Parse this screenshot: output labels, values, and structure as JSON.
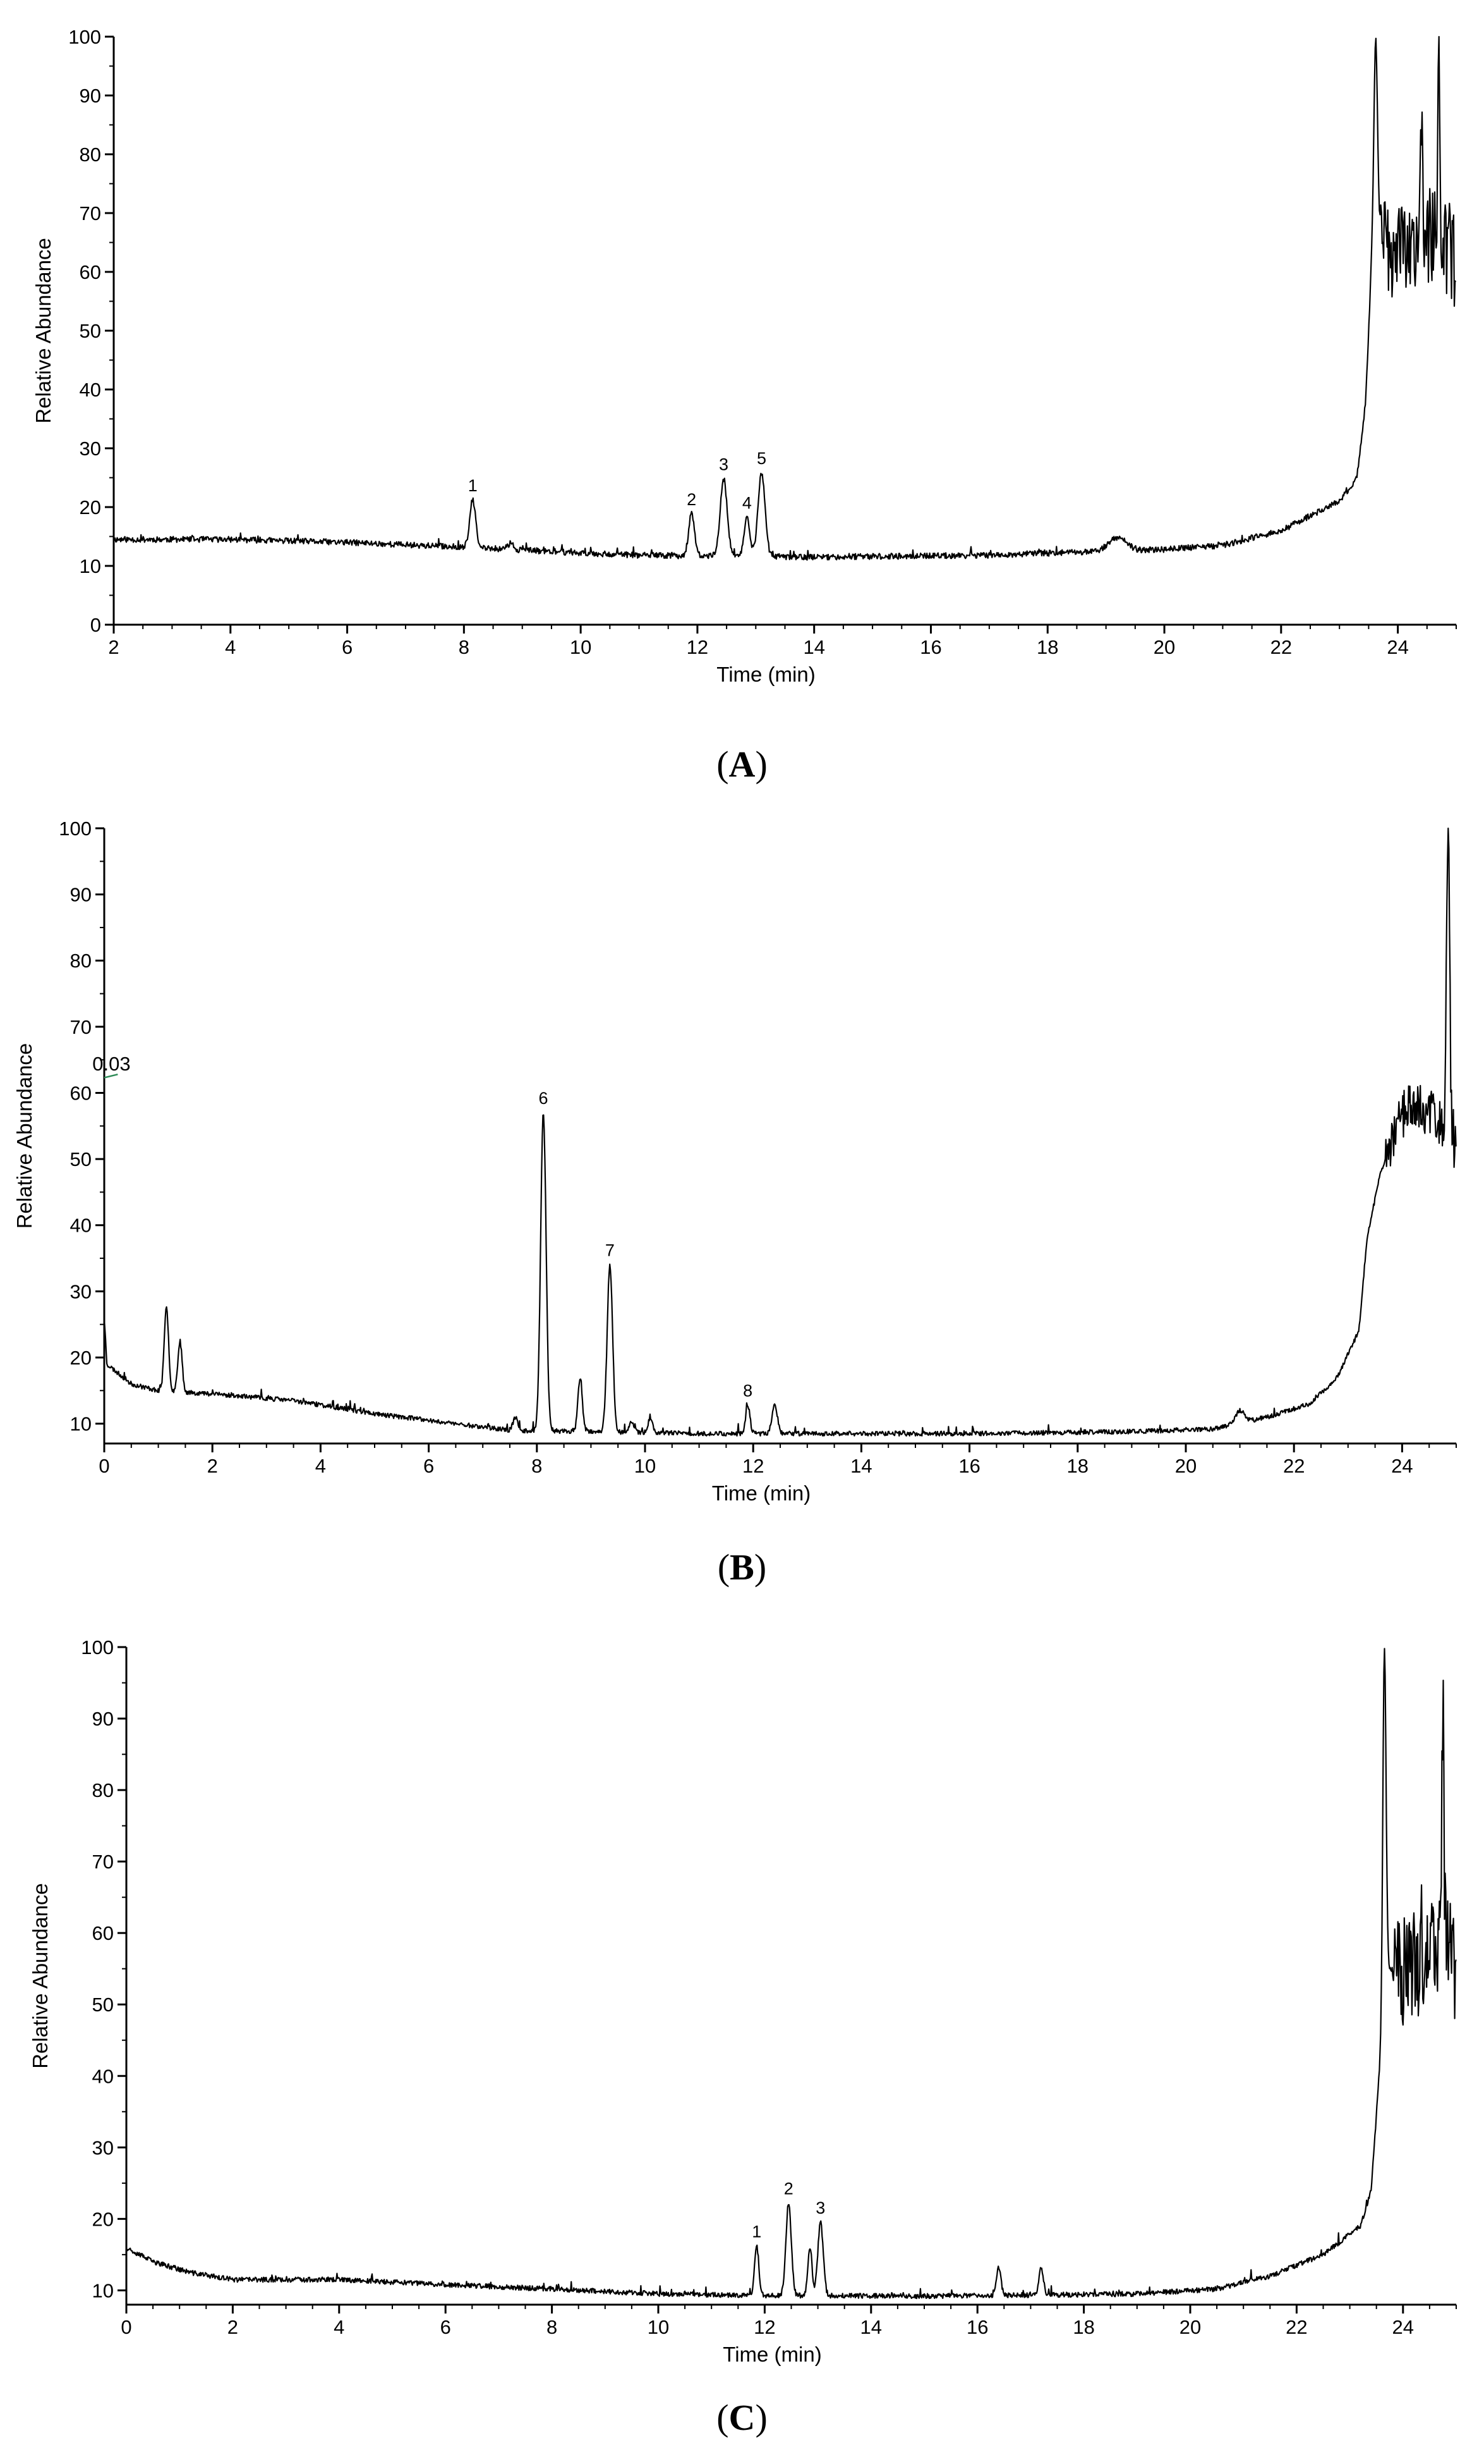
{
  "chart_data": [
    {
      "type": "line",
      "panel_label": "A",
      "xlabel": "Time (min)",
      "ylabel": "Relative Abundance",
      "xlim": [
        2,
        25
      ],
      "ylim": [
        0,
        100
      ],
      "xticks": [
        2,
        4,
        6,
        8,
        10,
        12,
        14,
        16,
        18,
        20,
        22,
        24
      ],
      "yticks": [
        0,
        10,
        20,
        30,
        40,
        50,
        60,
        70,
        80,
        90,
        100
      ],
      "grid": false,
      "baseline": [
        [
          2,
          14.5
        ],
        [
          4,
          14.5
        ],
        [
          6,
          14
        ],
        [
          8,
          13.2
        ],
        [
          10,
          12.2
        ],
        [
          11,
          11.8
        ],
        [
          14,
          11.5
        ],
        [
          17,
          11.8
        ],
        [
          19,
          12.5
        ],
        [
          20,
          12.8
        ],
        [
          21,
          13.5
        ],
        [
          22,
          16
        ],
        [
          23,
          21
        ],
        [
          23.3,
          25
        ],
        [
          23.45,
          38
        ],
        [
          23.55,
          62
        ],
        [
          23.7,
          68
        ],
        [
          24,
          62
        ],
        [
          24.3,
          66
        ],
        [
          24.6,
          65
        ],
        [
          25,
          62
        ]
      ],
      "peaks": [
        {
          "x": 8.15,
          "y": 21.2,
          "w": 0.05
        },
        {
          "x": 8.8,
          "y": 13.8,
          "w": 0.05
        },
        {
          "x": 11.9,
          "y": 18.8,
          "w": 0.05
        },
        {
          "x": 12.45,
          "y": 24.8,
          "w": 0.06
        },
        {
          "x": 12.85,
          "y": 18.2,
          "w": 0.05
        },
        {
          "x": 13.1,
          "y": 25.8,
          "w": 0.06
        },
        {
          "x": 19.2,
          "y": 14.8,
          "w": 0.15
        },
        {
          "x": 23.62,
          "y": 99.5,
          "w": 0.03
        },
        {
          "x": 24.4,
          "y": 86,
          "w": 0.02
        },
        {
          "x": 24.7,
          "y": 92,
          "w": 0.02
        }
      ],
      "noise": {
        "pre": 0.5,
        "post": 9,
        "post_start": 23.7
      },
      "annotations": [
        {
          "text": "1",
          "x": 8.15,
          "y": 21.2
        },
        {
          "text": "2",
          "x": 11.9,
          "y": 18.8
        },
        {
          "text": "3",
          "x": 12.45,
          "y": 24.8
        },
        {
          "text": "4",
          "x": 12.85,
          "y": 18.2
        },
        {
          "text": "5",
          "x": 13.1,
          "y": 25.8
        }
      ]
    },
    {
      "type": "line",
      "panel_label": "B",
      "xlabel": "Time (min)",
      "ylabel": "Relative Abundance",
      "xlim": [
        0,
        25
      ],
      "ylim": [
        7,
        100
      ],
      "xticks": [
        0,
        2,
        4,
        6,
        8,
        10,
        12,
        14,
        16,
        18,
        20,
        22,
        24
      ],
      "yticks": [
        10,
        20,
        30,
        40,
        50,
        60,
        70,
        80,
        90,
        100
      ],
      "grid": false,
      "baseline": [
        [
          0,
          26
        ],
        [
          0.05,
          19
        ],
        [
          0.5,
          16
        ],
        [
          1,
          15
        ],
        [
          2,
          14.5
        ],
        [
          3.5,
          13.5
        ],
        [
          5,
          11.5
        ],
        [
          6.5,
          10
        ],
        [
          7.5,
          9
        ],
        [
          9,
          8.8
        ],
        [
          11,
          8.5
        ],
        [
          16,
          8.5
        ],
        [
          19,
          8.8
        ],
        [
          20.5,
          9.2
        ],
        [
          21.5,
          11
        ],
        [
          22.3,
          13
        ],
        [
          22.8,
          17
        ],
        [
          23.2,
          24
        ],
        [
          23.35,
          38
        ],
        [
          23.6,
          48
        ],
        [
          24,
          57
        ],
        [
          24.5,
          58
        ],
        [
          24.9,
          52
        ],
        [
          25,
          51
        ]
      ],
      "peaks": [
        {
          "x": 1.15,
          "y": 27.5,
          "w": 0.04
        },
        {
          "x": 1.4,
          "y": 22.5,
          "w": 0.04
        },
        {
          "x": 7.6,
          "y": 11,
          "w": 0.04
        },
        {
          "x": 8.12,
          "y": 57,
          "w": 0.05
        },
        {
          "x": 8.8,
          "y": 17,
          "w": 0.04
        },
        {
          "x": 9.35,
          "y": 34,
          "w": 0.05
        },
        {
          "x": 9.75,
          "y": 10.5,
          "w": 0.04
        },
        {
          "x": 10.1,
          "y": 11,
          "w": 0.04
        },
        {
          "x": 11.9,
          "y": 12.8,
          "w": 0.04
        },
        {
          "x": 12.4,
          "y": 12.8,
          "w": 0.05
        },
        {
          "x": 21,
          "y": 12,
          "w": 0.08
        },
        {
          "x": 24.85,
          "y": 100,
          "w": 0.03
        }
      ],
      "noise": {
        "pre": 0.35,
        "post": 4,
        "post_start": 23.7
      },
      "annotations": [
        {
          "text": "6",
          "x": 8.12,
          "y": 57
        },
        {
          "text": "7",
          "x": 9.35,
          "y": 34
        },
        {
          "text": "8",
          "x": 11.9,
          "y": 12.8
        },
        {
          "text": "0.03",
          "x": 0.25,
          "y": 63
        }
      ],
      "marker_line": {
        "x": [
          0,
          0.25
        ],
        "y": [
          62.3,
          62.8
        ],
        "color": "#2e8b57"
      }
    },
    {
      "type": "line",
      "panel_label": "C",
      "xlabel": "Time (min)",
      "ylabel": "Relative Abundance",
      "xlim": [
        0,
        25
      ],
      "ylim": [
        8,
        100
      ],
      "xticks": [
        0,
        2,
        4,
        6,
        8,
        10,
        12,
        14,
        16,
        18,
        20,
        22,
        24
      ],
      "yticks": [
        10,
        20,
        30,
        40,
        50,
        60,
        70,
        80,
        90,
        100
      ],
      "grid": false,
      "baseline": [
        [
          0,
          16
        ],
        [
          0.5,
          14
        ],
        [
          1.2,
          12.5
        ],
        [
          2,
          11.5
        ],
        [
          4,
          11.5
        ],
        [
          6,
          10.8
        ],
        [
          8,
          10.2
        ],
        [
          10,
          9.5
        ],
        [
          12,
          9.3
        ],
        [
          15,
          9.2
        ],
        [
          19,
          9.5
        ],
        [
          20.5,
          10.2
        ],
        [
          21.5,
          12
        ],
        [
          22.5,
          15
        ],
        [
          23.2,
          19
        ],
        [
          23.4,
          24
        ],
        [
          23.55,
          40
        ],
        [
          23.7,
          55
        ],
        [
          24,
          55
        ],
        [
          24.4,
          55
        ],
        [
          24.7,
          60
        ],
        [
          25,
          55
        ]
      ],
      "peaks": [
        {
          "x": 11.85,
          "y": 16.2,
          "w": 0.04
        },
        {
          "x": 12.45,
          "y": 22.2,
          "w": 0.05
        },
        {
          "x": 12.85,
          "y": 16,
          "w": 0.04
        },
        {
          "x": 13.05,
          "y": 19.5,
          "w": 0.05
        },
        {
          "x": 16.4,
          "y": 13.2,
          "w": 0.04
        },
        {
          "x": 17.2,
          "y": 13.2,
          "w": 0.04
        },
        {
          "x": 23.65,
          "y": 100,
          "w": 0.03
        },
        {
          "x": 24.75,
          "y": 89,
          "w": 0.02
        }
      ],
      "noise": {
        "pre": 0.35,
        "post": 8,
        "post_start": 23.8
      },
      "annotations": [
        {
          "text": "1",
          "x": 11.85,
          "y": 16.2
        },
        {
          "text": "2",
          "x": 12.45,
          "y": 22.2
        },
        {
          "text": "3",
          "x": 13.05,
          "y": 19.5
        }
      ]
    }
  ]
}
